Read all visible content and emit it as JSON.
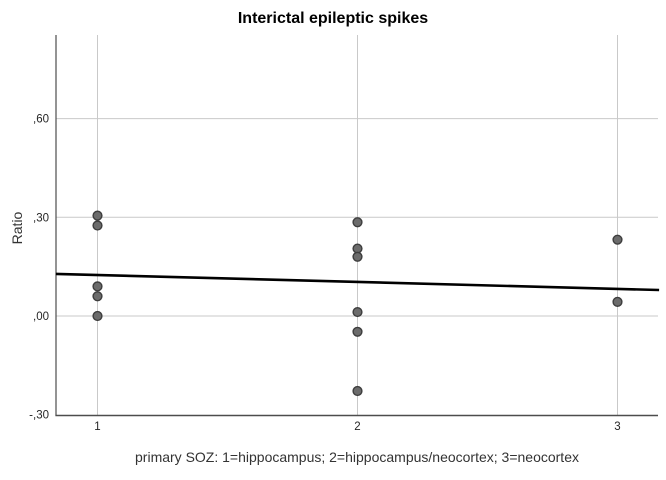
{
  "title": "Interictal epileptic spikes",
  "y_axis_title": "Ratio",
  "x_axis_title": "primary SOZ: 1=hippocampus; 2=hippocampus/neocortex; 3=neocortex",
  "chart_data": {
    "type": "scatter",
    "title": "Interictal epileptic spikes",
    "xlabel": "primary SOZ: 1=hippocampus; 2=hippocampus/neocortex; 3=neocortex",
    "ylabel": "Ratio",
    "x_ticks": [
      {
        "value": 1,
        "label": "1"
      },
      {
        "value": 2,
        "label": "2"
      },
      {
        "value": 3,
        "label": "3"
      }
    ],
    "y_ticks": [
      {
        "value": 0.6,
        "label": ",60"
      },
      {
        "value": 0.3,
        "label": ",30"
      },
      {
        "value": 0.0,
        "label": ",00"
      },
      {
        "value": -0.3,
        "label": "-,30"
      }
    ],
    "xlim": [
      0.84,
      3.16
    ],
    "ylim": [
      -0.3,
      0.86
    ],
    "grid": "on",
    "legend": "none",
    "points": [
      {
        "x": 1,
        "y": 0.305
      },
      {
        "x": 1,
        "y": 0.275
      },
      {
        "x": 1,
        "y": 0.09
      },
      {
        "x": 1,
        "y": 0.06
      },
      {
        "x": 1,
        "y": 0.0
      },
      {
        "x": 2,
        "y": 0.285
      },
      {
        "x": 2,
        "y": 0.205
      },
      {
        "x": 2,
        "y": 0.18
      },
      {
        "x": 2,
        "y": 0.012
      },
      {
        "x": 2,
        "y": -0.048
      },
      {
        "x": 2,
        "y": -0.228
      },
      {
        "x": 3,
        "y": 0.232
      },
      {
        "x": 3,
        "y": 0.043
      }
    ],
    "fit_line": {
      "x1": 0.84,
      "y1": 0.128,
      "x2": 3.16,
      "y2": 0.079
    },
    "colors": {
      "point_fill": "#6b6b6b",
      "point_stroke": "#3d3d3d",
      "gridline": "#c9c9c9",
      "axis": "#4d4d4d",
      "fit_line": "#000000",
      "text": "#262626",
      "background": "#ffffff"
    }
  }
}
